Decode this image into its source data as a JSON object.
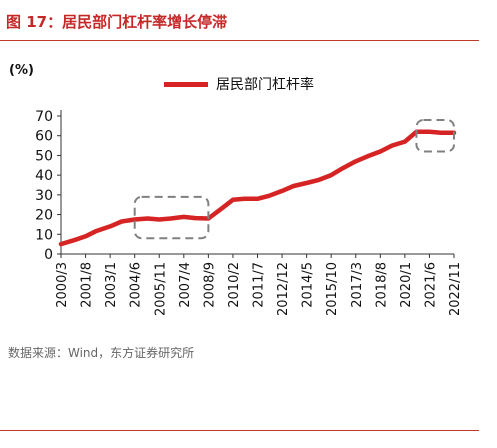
{
  "figure": {
    "title": "图 17：居民部门杠杆率增长停滞",
    "source": "数据来源：Wind，东方证券研究所",
    "accent_color": "#c62828"
  },
  "chart_data": {
    "type": "line",
    "title": "",
    "xlabel": "",
    "ylabel": "(%)",
    "ylim": [
      0,
      70
    ],
    "yticks": [
      0,
      10,
      20,
      30,
      40,
      50,
      60,
      70
    ],
    "grid": false,
    "legend_position": "top-center",
    "x_tick_labels": [
      "2000/3",
      "2001/8",
      "2003/1",
      "2004/6",
      "2005/11",
      "2007/4",
      "2008/9",
      "2010/2",
      "2011/7",
      "2012/12",
      "2014/5",
      "2015/10",
      "2017/3",
      "2018/8",
      "2020/1",
      "2021/6",
      "2022/11"
    ],
    "series": [
      {
        "name": "居民部门杠杆率",
        "color": "#d62424",
        "x": [
          "2000/3",
          "2000/12",
          "2001/8",
          "2002/3",
          "2003/1",
          "2003/9",
          "2004/6",
          "2005/3",
          "2005/11",
          "2006/7",
          "2007/4",
          "2007/12",
          "2008/9",
          "2009/6",
          "2010/2",
          "2010/10",
          "2011/7",
          "2012/3",
          "2012/12",
          "2013/8",
          "2014/5",
          "2015/1",
          "2015/10",
          "2016/6",
          "2017/3",
          "2017/11",
          "2018/8",
          "2019/4",
          "2020/1",
          "2020/9",
          "2021/6",
          "2022/2",
          "2022/11"
        ],
        "values": [
          5,
          7,
          9,
          11.5,
          14,
          16.5,
          17.5,
          18,
          17.5,
          18,
          18.8,
          18.2,
          18,
          23,
          27.5,
          28,
          28,
          29.5,
          32,
          34.5,
          36,
          37.5,
          40,
          43.5,
          47,
          49.5,
          52,
          55,
          57,
          62,
          62,
          61.5,
          61.5
        ]
      }
    ],
    "annotations": [
      {
        "type": "dashed-box",
        "x_range": [
          "2004/6",
          "2008/9"
        ],
        "y_range": [
          8,
          29
        ]
      },
      {
        "type": "dashed-box",
        "x_range": [
          "2020/9",
          "2022/11"
        ],
        "y_range": [
          52,
          68
        ]
      }
    ]
  }
}
